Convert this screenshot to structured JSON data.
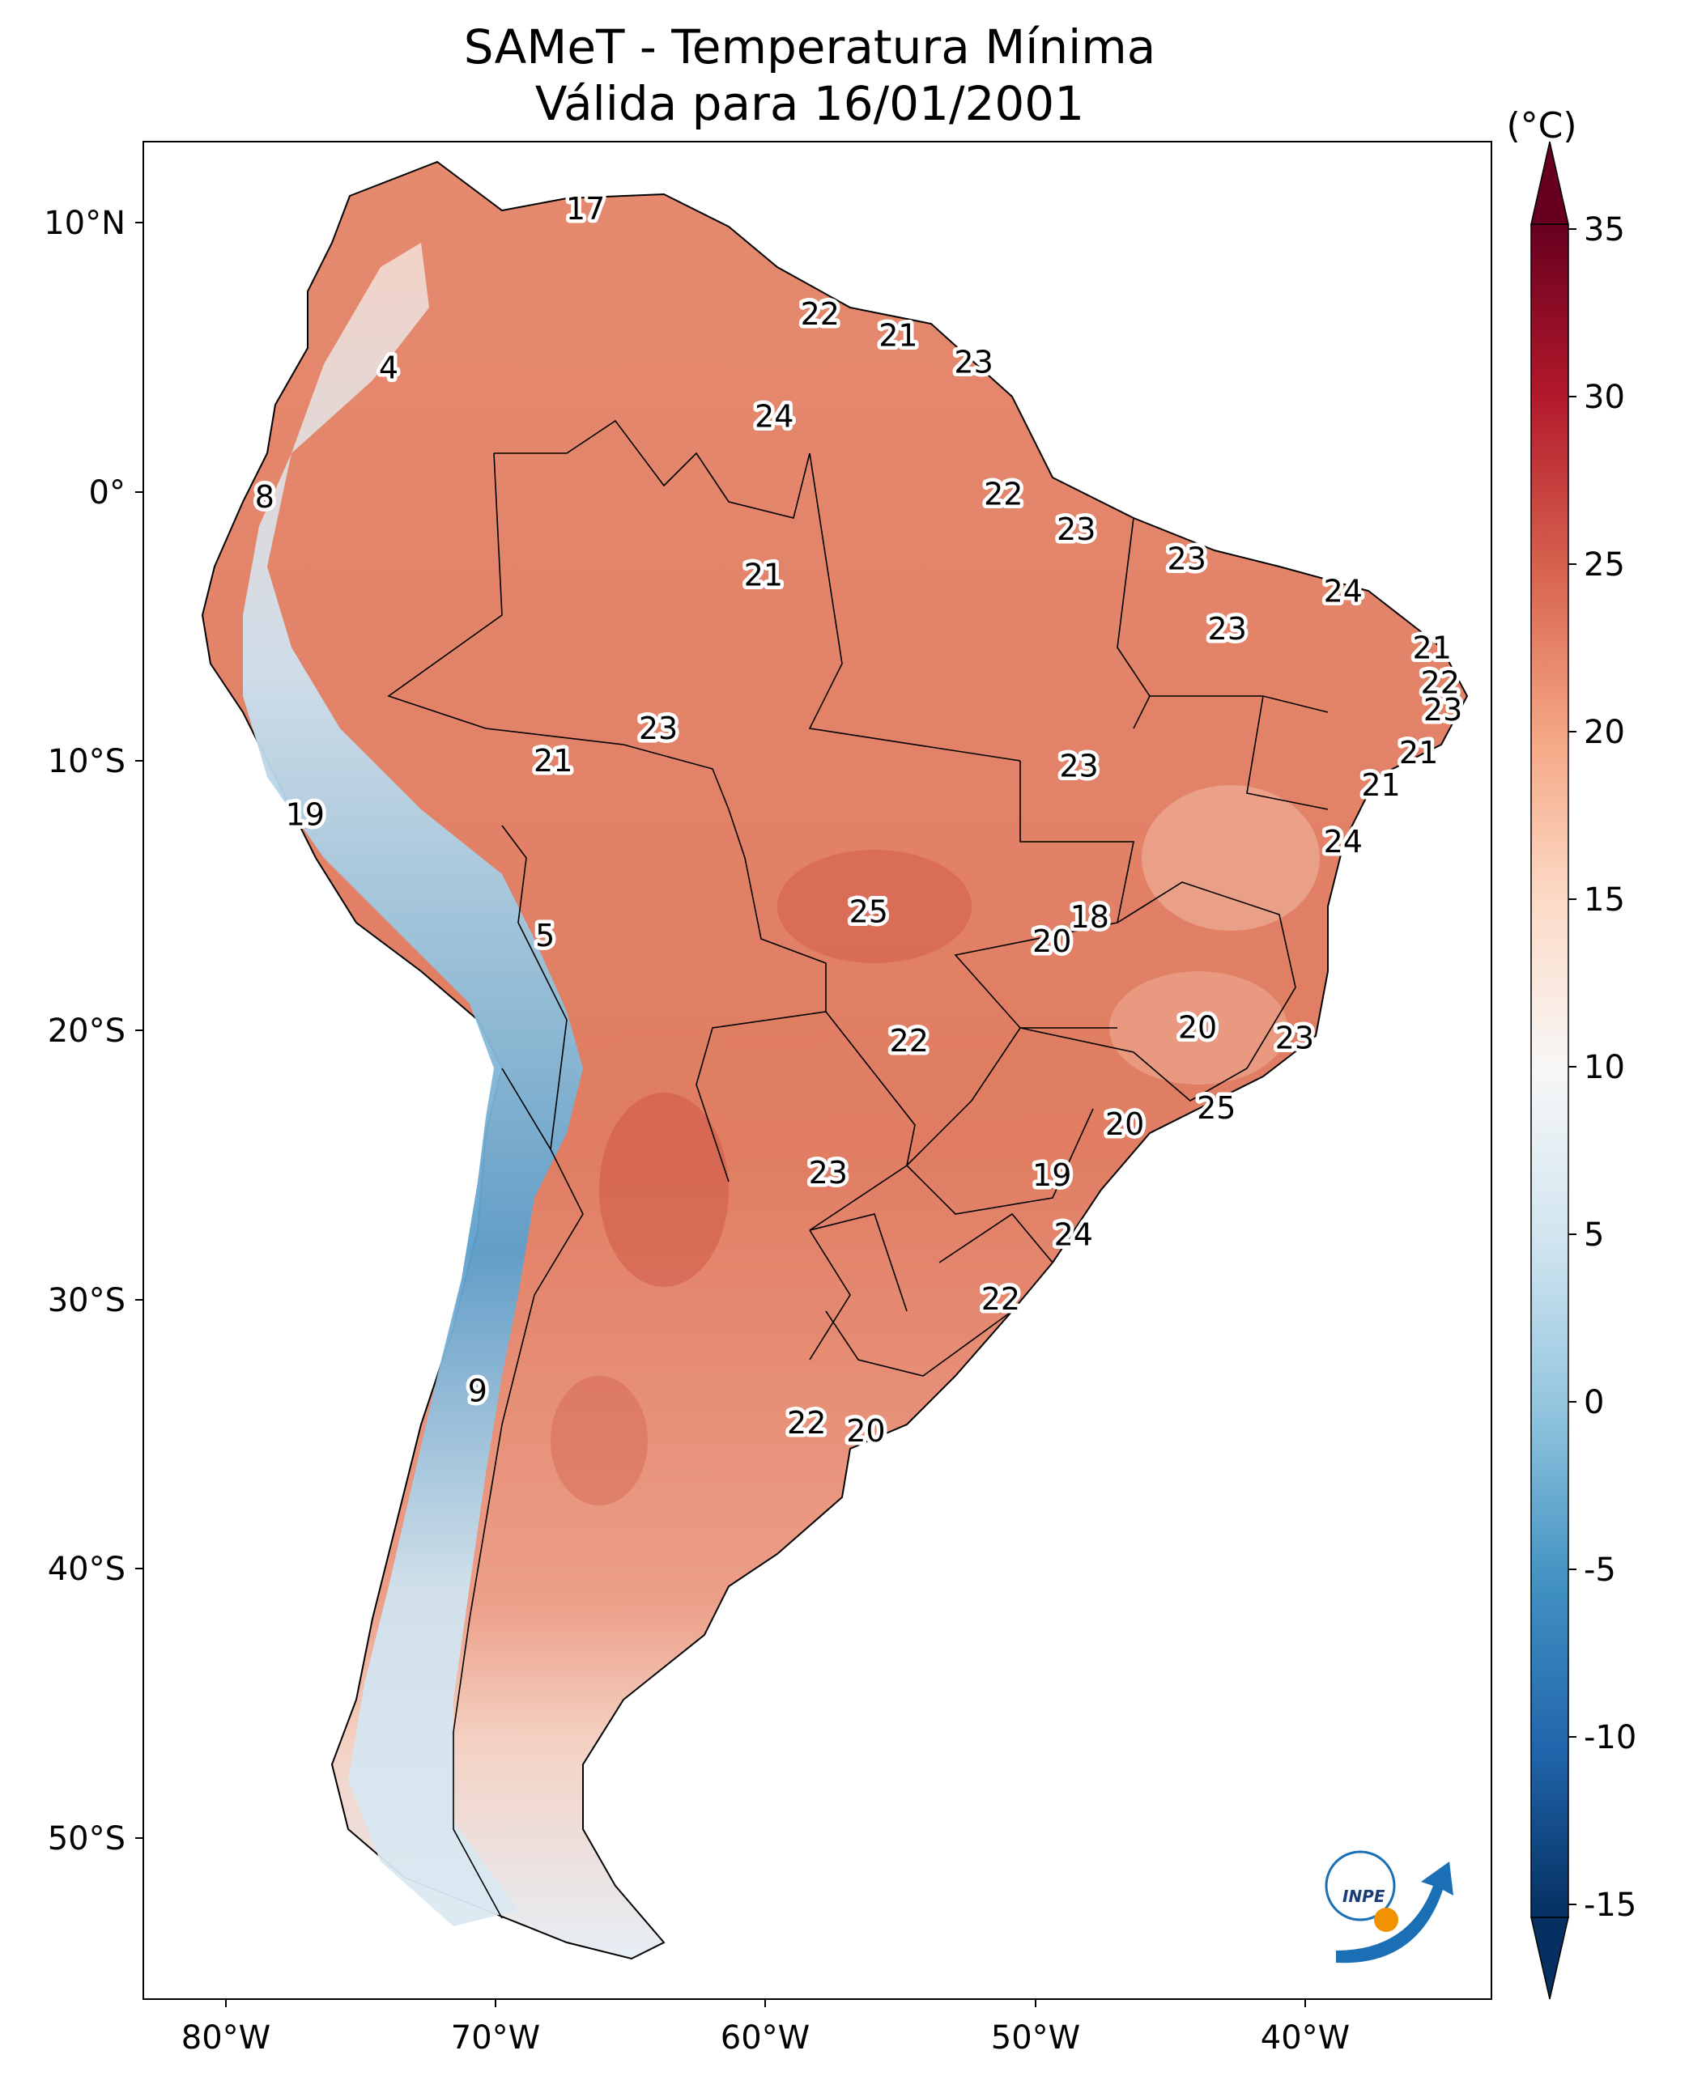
{
  "title_line1": "SAMeT - Temperatura Mínima",
  "title_line2": "Válida para 16/01/2001",
  "colorbar": {
    "unit_label": "(°C)",
    "ticks": [
      "35",
      "30",
      "25",
      "20",
      "15",
      "10",
      "5",
      "0",
      "-5",
      "-10",
      "-15"
    ],
    "range": [
      -15,
      35
    ],
    "extend": "both",
    "colormap": "RdBu_r",
    "colors": {
      "low": "#053061",
      "mid": "#f7f7f7",
      "high": "#67001f"
    }
  },
  "axes": {
    "lon_ticks": [
      "80°W",
      "70°W",
      "60°W",
      "50°W",
      "40°W"
    ],
    "lat_ticks": [
      "10°N",
      "0°",
      "10°S",
      "20°S",
      "30°S",
      "40°S",
      "50°S"
    ],
    "lon_range": [
      -83,
      -33
    ],
    "lat_range": [
      -56,
      13
    ]
  },
  "logo": {
    "text": "INPE",
    "colors": {
      "blue": "#1a6fb5",
      "orange": "#f39200"
    }
  },
  "chart_data": {
    "type": "heatmap",
    "variable": "minimum temperature",
    "units": "°C",
    "labels": [
      {
        "lon": -66.6,
        "lat": 10.5,
        "value": "17"
      },
      {
        "lon": -57.9,
        "lat": 6.6,
        "value": "22"
      },
      {
        "lon": -55.0,
        "lat": 5.8,
        "value": "21"
      },
      {
        "lon": -52.2,
        "lat": 4.8,
        "value": "23"
      },
      {
        "lon": -73.9,
        "lat": 4.6,
        "value": "4"
      },
      {
        "lon": -59.6,
        "lat": 2.8,
        "value": "24"
      },
      {
        "lon": -78.5,
        "lat": -0.2,
        "value": "8"
      },
      {
        "lon": -51.1,
        "lat": -0.1,
        "value": "22"
      },
      {
        "lon": -48.4,
        "lat": -1.4,
        "value": "23"
      },
      {
        "lon": -60.0,
        "lat": -3.1,
        "value": "21"
      },
      {
        "lon": -44.3,
        "lat": -2.5,
        "value": "23"
      },
      {
        "lon": -38.5,
        "lat": -3.7,
        "value": "24"
      },
      {
        "lon": -42.8,
        "lat": -5.1,
        "value": "23"
      },
      {
        "lon": -35.2,
        "lat": -5.8,
        "value": "21"
      },
      {
        "lon": -34.9,
        "lat": -7.1,
        "value": "22"
      },
      {
        "lon": -34.8,
        "lat": -8.1,
        "value": "23"
      },
      {
        "lon": -63.9,
        "lat": -8.8,
        "value": "23"
      },
      {
        "lon": -67.8,
        "lat": -10.0,
        "value": "21"
      },
      {
        "lon": -48.3,
        "lat": -10.2,
        "value": "23"
      },
      {
        "lon": -35.7,
        "lat": -9.7,
        "value": "21"
      },
      {
        "lon": -37.1,
        "lat": -10.9,
        "value": "21"
      },
      {
        "lon": -77.0,
        "lat": -12.0,
        "value": "19"
      },
      {
        "lon": -38.5,
        "lat": -13.0,
        "value": "24"
      },
      {
        "lon": -56.1,
        "lat": -15.6,
        "value": "25"
      },
      {
        "lon": -47.9,
        "lat": -15.8,
        "value": "18"
      },
      {
        "lon": -49.3,
        "lat": -16.7,
        "value": "20"
      },
      {
        "lon": -68.1,
        "lat": -16.5,
        "value": "5"
      },
      {
        "lon": -43.9,
        "lat": -19.9,
        "value": "20"
      },
      {
        "lon": -40.3,
        "lat": -20.3,
        "value": "23"
      },
      {
        "lon": -54.6,
        "lat": -20.4,
        "value": "22"
      },
      {
        "lon": -43.2,
        "lat": -22.9,
        "value": "25"
      },
      {
        "lon": -46.6,
        "lat": -23.5,
        "value": "20"
      },
      {
        "lon": -57.6,
        "lat": -25.3,
        "value": "23"
      },
      {
        "lon": -49.3,
        "lat": -25.4,
        "value": "19"
      },
      {
        "lon": -48.5,
        "lat": -27.6,
        "value": "24"
      },
      {
        "lon": -51.2,
        "lat": -30.0,
        "value": "22"
      },
      {
        "lon": -70.6,
        "lat": -33.4,
        "value": "9"
      },
      {
        "lon": -58.4,
        "lat": -34.6,
        "value": "22"
      },
      {
        "lon": -56.2,
        "lat": -34.9,
        "value": "20"
      }
    ]
  }
}
